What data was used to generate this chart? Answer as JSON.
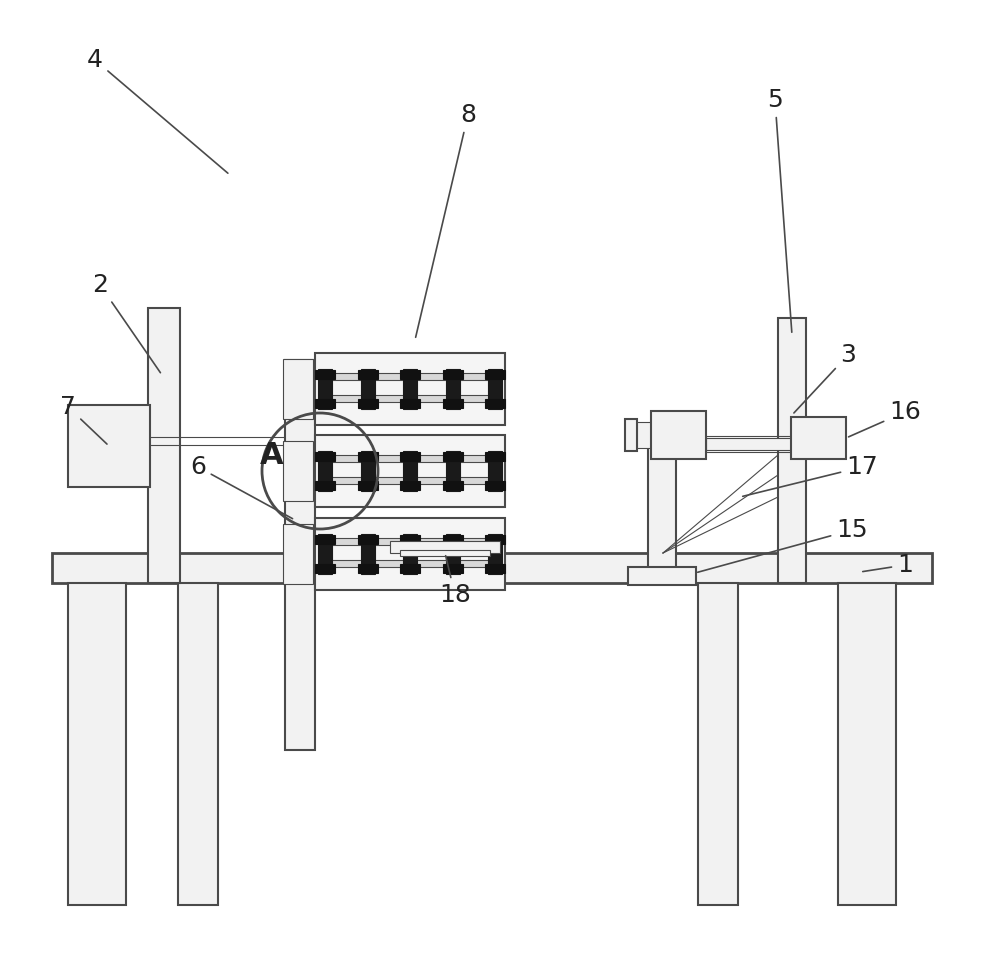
{
  "bg_color": "#ffffff",
  "line_color": "#4a4a4a",
  "lw": 1.5,
  "lw_thin": 0.8,
  "lw_thick": 2.0,
  "fig_width": 10.0,
  "fig_height": 9.65
}
